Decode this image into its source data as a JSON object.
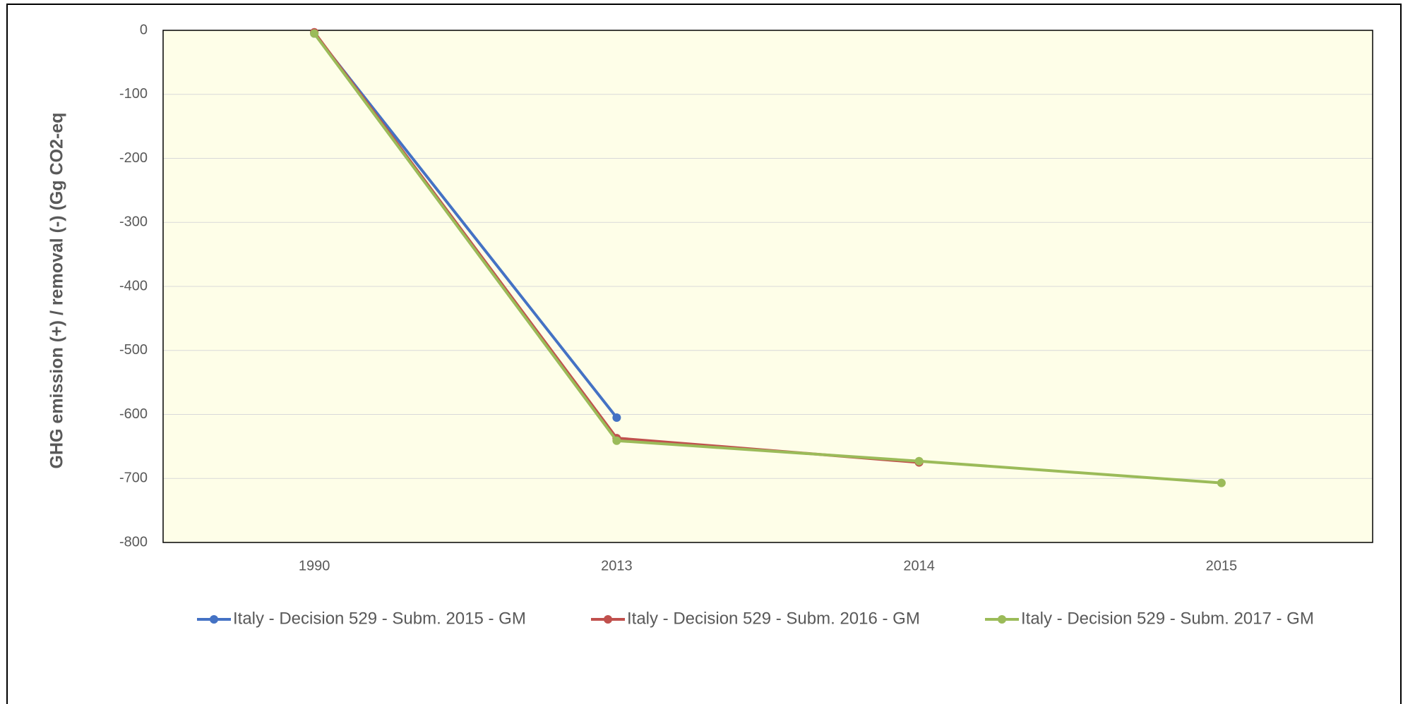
{
  "chart_data": {
    "type": "line",
    "y_label": "GHG emission (+) / removal (-) (Gg CO2-eq",
    "categories": [
      "1990",
      "2013",
      "2014",
      "2015"
    ],
    "series": [
      {
        "name": "Italy - Decision 529 - Subm. 2015 - GM",
        "color": "#4472c4",
        "values": [
          -5,
          -605,
          null,
          null
        ]
      },
      {
        "name": "Italy - Decision 529 - Subm. 2016 - GM",
        "color": "#c0504d",
        "values": [
          -3,
          -637,
          -675,
          null
        ]
      },
      {
        "name": "Italy - Decision 529 - Subm. 2017 - GM",
        "color": "#9bbb59",
        "values": [
          -5,
          -641,
          -673,
          -707
        ]
      }
    ],
    "ylim": [
      -800,
      0
    ],
    "yticks": [
      0,
      -100,
      -200,
      -300,
      -400,
      -500,
      -600,
      -700,
      -800
    ],
    "grid": true,
    "legend": "bottom",
    "plot_background": "#fefee8"
  }
}
